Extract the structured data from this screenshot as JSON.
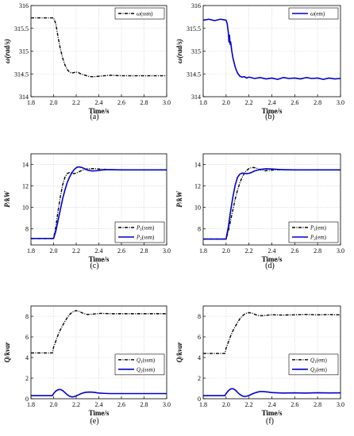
{
  "chart_data": [
    {
      "panel_label": "(a)",
      "type": "line",
      "xlabel": "Time/s",
      "ylabel": "ω(rad/s)",
      "xlim": [
        1.8,
        3.0
      ],
      "ylim": [
        314,
        316
      ],
      "xticks": [
        "1.8",
        "2.0",
        "2.2",
        "2.4",
        "2.6",
        "2.8",
        "3.0"
      ],
      "yticks": [
        "314",
        "314.5",
        "315",
        "315.5",
        "316"
      ],
      "legend_position": "top-right",
      "series": [
        {
          "name": "ω(ssm)",
          "legend_main": "ω",
          "legend_sub": "",
          "legend_suffix": "(ssm)",
          "color": "#000000",
          "dash": "dashdot",
          "x": [
            1.8,
            2.0,
            2.02,
            2.04,
            2.06,
            2.08,
            2.1,
            2.12,
            2.14,
            2.16,
            2.18,
            2.2,
            2.22,
            2.24,
            2.28,
            2.32,
            2.36,
            2.4,
            2.45,
            2.5,
            2.6,
            2.7,
            2.8,
            2.9,
            3.0
          ],
          "y": [
            315.73,
            315.73,
            315.6,
            315.3,
            315.05,
            314.85,
            314.7,
            314.6,
            314.54,
            314.52,
            314.53,
            314.54,
            314.53,
            314.5,
            314.47,
            314.44,
            314.44,
            314.45,
            314.46,
            314.47,
            314.46,
            314.46,
            314.46,
            314.46,
            314.46
          ]
        }
      ]
    },
    {
      "panel_label": "(b)",
      "type": "line",
      "xlabel": "Time/s",
      "ylabel": "ω(rad/s)",
      "xlim": [
        1.8,
        3.0
      ],
      "ylim": [
        314,
        316
      ],
      "xticks": [
        "1.8",
        "2.0",
        "2.2",
        "2.4",
        "2.6",
        "2.8",
        "3.0"
      ],
      "yticks": [
        "314",
        "314.5",
        "315",
        "315.5",
        "316"
      ],
      "legend_position": "top-right",
      "series": [
        {
          "name": "ω(em)",
          "legend_main": "ω",
          "legend_sub": "",
          "legend_suffix": "(em)",
          "color": "#0000cc",
          "dash": "solid",
          "x": [
            1.8,
            1.85,
            1.9,
            1.95,
            2.0,
            2.01,
            2.02,
            2.025,
            2.03,
            2.035,
            2.04,
            2.05,
            2.06,
            2.07,
            2.08,
            2.09,
            2.1,
            2.12,
            2.14,
            2.16,
            2.18,
            2.2,
            2.25,
            2.3,
            2.35,
            2.4,
            2.45,
            2.5,
            2.55,
            2.6,
            2.65,
            2.7,
            2.75,
            2.8,
            2.85,
            2.9,
            2.95,
            3.0
          ],
          "y": [
            315.68,
            315.7,
            315.67,
            315.7,
            315.68,
            315.6,
            315.4,
            315.2,
            315.35,
            315.15,
            315.2,
            315.0,
            314.85,
            314.75,
            314.65,
            314.58,
            314.52,
            314.45,
            314.43,
            314.44,
            314.41,
            314.43,
            314.4,
            314.42,
            314.39,
            314.41,
            314.38,
            314.42,
            314.4,
            314.41,
            314.39,
            314.42,
            314.4,
            314.41,
            314.38,
            314.41,
            314.39,
            314.4
          ]
        }
      ]
    },
    {
      "panel_label": "(c)",
      "type": "line",
      "xlabel": "Time/s",
      "ylabel": "P/kW",
      "xlim": [
        1.8,
        3.0
      ],
      "ylim": [
        6.5,
        15
      ],
      "xticks": [
        "1.8",
        "2.0",
        "2.2",
        "2.4",
        "2.6",
        "2.8",
        "3.0"
      ],
      "yticks": [
        "8",
        "10",
        "12",
        "14"
      ],
      "legend_position": "bottom-right",
      "series": [
        {
          "name": "P1(ssm)",
          "legend_main": "P",
          "legend_sub": "1",
          "legend_suffix": "(ssm)",
          "color": "#000000",
          "dash": "dashdot",
          "x": [
            1.8,
            2.0,
            2.02,
            2.04,
            2.06,
            2.08,
            2.1,
            2.12,
            2.14,
            2.16,
            2.18,
            2.2,
            2.22,
            2.25,
            2.3,
            2.35,
            2.4,
            2.45,
            2.5,
            2.6,
            3.0
          ],
          "y": [
            7.1,
            7.1,
            8.2,
            9.7,
            11.0,
            12.1,
            12.8,
            13.15,
            13.25,
            13.2,
            13.15,
            13.2,
            13.3,
            13.45,
            13.6,
            13.62,
            13.58,
            13.55,
            13.52,
            13.5,
            13.5
          ]
        },
        {
          "name": "P2(ssm)",
          "legend_main": "P",
          "legend_sub": "2",
          "legend_suffix": "(ssm)",
          "color": "#0000cc",
          "dash": "solid",
          "x": [
            1.8,
            2.0,
            2.02,
            2.04,
            2.06,
            2.08,
            2.1,
            2.12,
            2.14,
            2.16,
            2.18,
            2.2,
            2.22,
            2.24,
            2.26,
            2.28,
            2.3,
            2.34,
            2.38,
            2.42,
            2.46,
            2.5,
            2.6,
            3.0
          ],
          "y": [
            7.1,
            7.1,
            7.8,
            8.8,
            9.8,
            10.8,
            11.6,
            12.3,
            12.8,
            13.2,
            13.5,
            13.7,
            13.78,
            13.75,
            13.68,
            13.58,
            13.48,
            13.4,
            13.42,
            13.48,
            13.52,
            13.52,
            13.5,
            13.5
          ]
        }
      ]
    },
    {
      "panel_label": "(d)",
      "type": "line",
      "xlabel": "Time/s",
      "ylabel": "P/kW",
      "xlim": [
        1.8,
        3.0
      ],
      "ylim": [
        6.5,
        15
      ],
      "xticks": [
        "1.8",
        "2.0",
        "2.2",
        "2.4",
        "2.6",
        "2.8",
        "3.0"
      ],
      "yticks": [
        "8",
        "10",
        "12",
        "14"
      ],
      "legend_position": "bottom-right",
      "series": [
        {
          "name": "P1(em)",
          "legend_main": "P",
          "legend_sub": "1",
          "legend_suffix": "(em)",
          "color": "#000000",
          "dash": "dashdot",
          "x": [
            1.8,
            2.0,
            2.02,
            2.04,
            2.06,
            2.08,
            2.1,
            2.12,
            2.14,
            2.16,
            2.18,
            2.2,
            2.22,
            2.24,
            2.26,
            2.28,
            2.3,
            2.34,
            2.38,
            2.42,
            2.5,
            2.6,
            3.0
          ],
          "y": [
            7.05,
            7.05,
            7.8,
            8.8,
            9.8,
            10.8,
            11.6,
            12.3,
            12.8,
            13.2,
            13.45,
            13.62,
            13.7,
            13.72,
            13.68,
            13.6,
            13.5,
            13.42,
            13.45,
            13.5,
            13.52,
            13.5,
            13.5
          ]
        },
        {
          "name": "P2(em)",
          "legend_main": "P",
          "legend_sub": "2",
          "legend_suffix": "(em)",
          "color": "#0000cc",
          "dash": "solid",
          "x": [
            1.8,
            2.0,
            2.02,
            2.04,
            2.06,
            2.08,
            2.1,
            2.12,
            2.14,
            2.16,
            2.18,
            2.2,
            2.22,
            2.25,
            2.3,
            2.35,
            2.4,
            2.45,
            2.5,
            2.6,
            3.0
          ],
          "y": [
            7.05,
            7.05,
            8.2,
            9.7,
            11.0,
            12.1,
            12.8,
            13.1,
            13.2,
            13.18,
            13.15,
            13.18,
            13.25,
            13.4,
            13.55,
            13.6,
            13.58,
            13.55,
            13.52,
            13.5,
            13.5
          ]
        }
      ]
    },
    {
      "panel_label": "(e)",
      "type": "line",
      "xlabel": "Time/s",
      "ylabel": "Q/kvar",
      "xlim": [
        1.8,
        3.0
      ],
      "ylim": [
        0,
        9
      ],
      "xticks": [
        "1.8",
        "2.0",
        "2.2",
        "2.4",
        "2.6",
        "2.8",
        "3.0"
      ],
      "yticks": [
        "0",
        "2",
        "4",
        "6",
        "8"
      ],
      "legend_position": "right",
      "series": [
        {
          "name": "Q1(ssm)",
          "legend_main": "Q",
          "legend_sub": "1",
          "legend_suffix": "(ssm)",
          "color": "#000000",
          "dash": "dashdot",
          "x": [
            1.8,
            1.99,
            2.0,
            2.02,
            2.04,
            2.06,
            2.08,
            2.1,
            2.12,
            2.14,
            2.16,
            2.18,
            2.2,
            2.22,
            2.24,
            2.26,
            2.28,
            2.3,
            2.34,
            2.38,
            2.42,
            2.5,
            2.6,
            3.0
          ],
          "y": [
            4.45,
            4.45,
            5.0,
            5.6,
            6.2,
            6.7,
            7.1,
            7.5,
            7.85,
            8.15,
            8.35,
            8.5,
            8.55,
            8.5,
            8.4,
            8.3,
            8.22,
            8.18,
            8.2,
            8.25,
            8.28,
            8.25,
            8.25,
            8.25
          ]
        },
        {
          "name": "Q2(ssm)",
          "legend_main": "Q",
          "legend_sub": "2",
          "legend_suffix": "(ssm)",
          "color": "#0000cc",
          "dash": "solid",
          "x": [
            1.8,
            1.99,
            2.0,
            2.02,
            2.04,
            2.06,
            2.08,
            2.1,
            2.12,
            2.14,
            2.16,
            2.18,
            2.2,
            2.22,
            2.24,
            2.26,
            2.28,
            2.3,
            2.32,
            2.34,
            2.36,
            2.38,
            2.4,
            2.45,
            2.5,
            2.6,
            3.0
          ],
          "y": [
            0.3,
            0.3,
            0.5,
            0.75,
            0.88,
            0.9,
            0.8,
            0.6,
            0.4,
            0.25,
            0.18,
            0.2,
            0.28,
            0.38,
            0.48,
            0.56,
            0.62,
            0.64,
            0.65,
            0.64,
            0.62,
            0.58,
            0.55,
            0.52,
            0.5,
            0.5,
            0.5
          ]
        }
      ]
    },
    {
      "panel_label": "(f)",
      "type": "line",
      "xlabel": "Time/s",
      "ylabel": "Q/kvar",
      "xlim": [
        1.8,
        3.0
      ],
      "ylim": [
        0,
        9
      ],
      "xticks": [
        "1.8",
        "2.0",
        "2.2",
        "2.4",
        "2.6",
        "2.8",
        "3.0"
      ],
      "yticks": [
        "0",
        "2",
        "4",
        "6",
        "8"
      ],
      "legend_position": "right",
      "series": [
        {
          "name": "Q1(em)",
          "legend_main": "Q",
          "legend_sub": "1",
          "legend_suffix": "(em)",
          "color": "#000000",
          "dash": "dashdot",
          "x": [
            1.8,
            1.99,
            2.0,
            2.02,
            2.04,
            2.06,
            2.08,
            2.1,
            2.12,
            2.14,
            2.16,
            2.18,
            2.2,
            2.22,
            2.24,
            2.26,
            2.28,
            2.3,
            2.35,
            2.4,
            2.5,
            2.6,
            2.7,
            2.8,
            2.9,
            3.0
          ],
          "y": [
            4.4,
            4.4,
            4.9,
            5.5,
            6.1,
            6.6,
            7.0,
            7.4,
            7.75,
            8.0,
            8.2,
            8.3,
            8.35,
            8.32,
            8.25,
            8.15,
            8.08,
            8.05,
            8.1,
            8.15,
            8.12,
            8.15,
            8.18,
            8.15,
            8.17,
            8.15
          ]
        },
        {
          "name": "Q2(em)",
          "legend_main": "Q",
          "legend_sub": "2",
          "legend_suffix": "(em)",
          "color": "#0000cc",
          "dash": "solid",
          "x": [
            1.8,
            1.99,
            2.0,
            2.02,
            2.04,
            2.06,
            2.08,
            2.1,
            2.12,
            2.14,
            2.16,
            2.18,
            2.2,
            2.22,
            2.24,
            2.26,
            2.28,
            2.3,
            2.32,
            2.34,
            2.36,
            2.38,
            2.4,
            2.45,
            2.5,
            2.6,
            2.7,
            2.8,
            2.9,
            3.0
          ],
          "y": [
            0.3,
            0.3,
            0.5,
            0.78,
            0.95,
            0.98,
            0.85,
            0.62,
            0.42,
            0.28,
            0.22,
            0.25,
            0.32,
            0.42,
            0.52,
            0.6,
            0.66,
            0.7,
            0.7,
            0.68,
            0.66,
            0.63,
            0.6,
            0.57,
            0.55,
            0.57,
            0.55,
            0.58,
            0.56,
            0.57
          ]
        }
      ]
    }
  ]
}
